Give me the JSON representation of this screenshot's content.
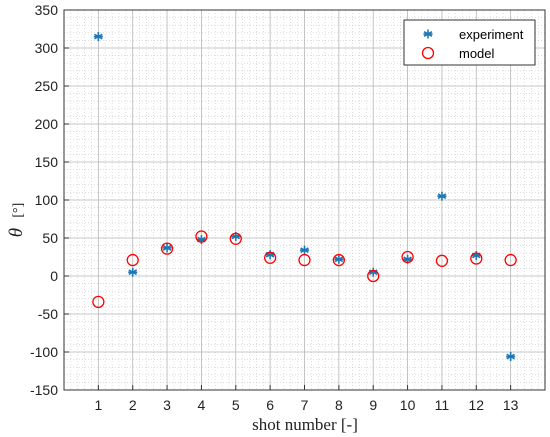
{
  "chart_data": {
    "type": "scatter",
    "xlabel": "shot number [-]",
    "ylabel_symbol": "θ",
    "ylabel_unit": "[°]",
    "xlim": [
      0,
      14
    ],
    "ylim": [
      -150,
      350
    ],
    "xticks": [
      1,
      2,
      3,
      4,
      5,
      6,
      7,
      8,
      9,
      10,
      11,
      12,
      13
    ],
    "yticks": [
      -150,
      -100,
      -50,
      0,
      50,
      100,
      150,
      200,
      250,
      300,
      350
    ],
    "grid": true,
    "minor_grid": true,
    "legend_position": "top-right",
    "series": [
      {
        "name": "experiment",
        "marker": "asterisk",
        "color": "#1f77b4",
        "x": [
          1,
          2,
          3,
          4,
          5,
          6,
          7,
          8,
          9,
          10,
          11,
          12,
          13
        ],
        "y": [
          315,
          5,
          37,
          48,
          52,
          28,
          34,
          22,
          5,
          22,
          105,
          27,
          -106
        ]
      },
      {
        "name": "model",
        "marker": "circle",
        "color": "#ff0000",
        "x": [
          1,
          2,
          3,
          4,
          5,
          6,
          7,
          8,
          9,
          10,
          11,
          12,
          13
        ],
        "y": [
          -34,
          21,
          36,
          52,
          49,
          24,
          21,
          21,
          0,
          25,
          20,
          23,
          21
        ]
      }
    ]
  }
}
